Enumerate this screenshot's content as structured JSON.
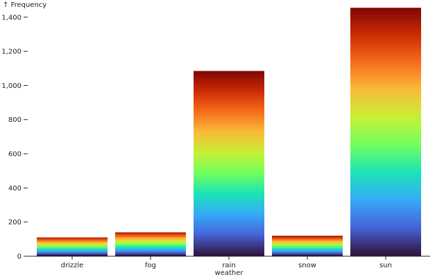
{
  "chart_data": {
    "type": "bar",
    "ylabel": "↑ Frequency",
    "xlabel": "weather",
    "categories": [
      "drizzle",
      "fog",
      "rain",
      "snow",
      "sun"
    ],
    "values": [
      110,
      140,
      1085,
      120,
      1455
    ],
    "ylim": [
      0,
      1460
    ],
    "yticks": [
      0,
      200,
      400,
      600,
      800,
      1000,
      1200,
      1400
    ],
    "ytick_labels": [
      "0",
      "200",
      "400",
      "600",
      "800",
      "1,000",
      "1,200",
      "1,400"
    ],
    "grid": false,
    "color_scheme": "turbo",
    "stack_color_stops": [
      "#30123b",
      "#4662d7",
      "#36aaf9",
      "#1ae4b6",
      "#72fe5e",
      "#c8ef34",
      "#faba39",
      "#f66b19",
      "#ca2a04",
      "#7a0403"
    ]
  }
}
